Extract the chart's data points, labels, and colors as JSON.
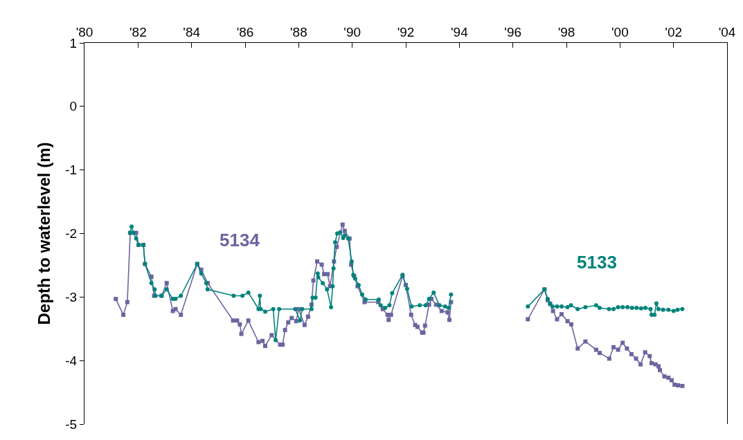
{
  "chart_data": {
    "type": "line",
    "ylabel": "Depth to waterlevel (m)",
    "xlim": [
      1980,
      2004
    ],
    "xticks": [
      {
        "value": 1980,
        "label": "'80"
      },
      {
        "value": 1982,
        "label": "'82"
      },
      {
        "value": 1984,
        "label": "'84"
      },
      {
        "value": 1986,
        "label": "'86"
      },
      {
        "value": 1988,
        "label": "'88"
      },
      {
        "value": 1990,
        "label": "'90"
      },
      {
        "value": 1992,
        "label": "'92"
      },
      {
        "value": 1994,
        "label": "'94"
      },
      {
        "value": 1996,
        "label": "'96"
      },
      {
        "value": 1998,
        "label": "'98"
      },
      {
        "value": 2000,
        "label": "'00"
      },
      {
        "value": 2002,
        "label": "'02"
      },
      {
        "value": 2004,
        "label": "'04"
      }
    ],
    "ylim": [
      -5,
      1
    ],
    "yticks": [
      -5,
      -4,
      -3,
      -2,
      -1,
      0,
      1
    ],
    "grid": false,
    "legend": false,
    "line_style": "solid",
    "series": [
      {
        "name": "5134",
        "color": "#6b65a0",
        "marker": "square",
        "x": [
          1981.17,
          1981.45,
          1981.6,
          1981.71,
          1981.93,
          1982.02,
          1982.2,
          1982.26,
          1982.5,
          1982.6,
          1982.88,
          1983.07,
          1983.3,
          1983.4,
          1983.6,
          1984.21,
          1984.36,
          1984.6,
          1985.55,
          1985.7,
          1985.8,
          1985.86,
          1986.12,
          1986.5,
          1986.65,
          1986.75,
          1986.99,
          1987.31,
          1987.4,
          1987.49,
          1987.61,
          1987.74,
          1987.91,
          1988.0,
          1988.22,
          1988.35,
          1988.48,
          1988.55,
          1988.69,
          1988.86,
          1988.95,
          1989.08,
          1989.17,
          1989.32,
          1989.42,
          1989.64,
          1989.72,
          1989.9,
          1989.96,
          1990.07,
          1990.2,
          1990.46,
          1990.97,
          1991.14,
          1991.32,
          1991.36,
          1991.45,
          1991.88,
          1992.0,
          1992.2,
          1992.35,
          1992.44,
          1992.61,
          1992.66,
          1992.72,
          1992.87,
          1992.96,
          1993.13,
          1993.34,
          1993.56,
          1993.63,
          1993.69,
          1995,
          1996.56,
          1997.18,
          1997.3,
          1997.39,
          1997.5,
          1997.65,
          1997.82,
          1998.04,
          1998.18,
          1998.42,
          1998.71,
          1999.11,
          1999.24,
          1999.6,
          1999.76,
          1999.93,
          2000.1,
          2000.26,
          2000.43,
          2000.6,
          2000.77,
          2000.94,
          2001.11,
          2001.18,
          2001.33,
          2001.44,
          2001.49,
          2001.66,
          2001.81,
          2001.93,
          2002.04,
          2002.17,
          2002.33
        ],
        "values": [
          -3.03,
          -3.28,
          -3.08,
          -1.99,
          -1.99,
          -2.18,
          -2.18,
          -2.48,
          -2.68,
          -2.98,
          -2.98,
          -2.78,
          -3.22,
          -3.19,
          -3.28,
          -2.48,
          -2.57,
          -2.78,
          -3.37,
          -3.37,
          -3.43,
          -3.58,
          -3.37,
          -3.71,
          -3.69,
          -3.77,
          -3.6,
          -3.75,
          -3.75,
          -3.52,
          -3.4,
          -3.33,
          -3.38,
          -3.19,
          -3.44,
          -3.31,
          -3.12,
          -2.74,
          -2.44,
          -2.49,
          -2.64,
          -2.64,
          -2.83,
          -2.44,
          -2.21,
          -1.86,
          -1.96,
          -2.08,
          -2.49,
          -2.67,
          -2.83,
          -3.08,
          -3.08,
          -3.19,
          -3.28,
          -3.36,
          -3.28,
          -2.67,
          -2.81,
          -3.28,
          -3.44,
          -3.47,
          -3.56,
          -3.56,
          -3.45,
          -3.12,
          -3.03,
          -3.12,
          -3.22,
          -3.24,
          -3.36,
          -3.08,
          null,
          -3.35,
          -2.88,
          -3.05,
          -3.11,
          -3.22,
          -3.35,
          -3.27,
          -3.38,
          -3.43,
          -3.81,
          -3.7,
          -3.83,
          -3.88,
          -3.97,
          -3.79,
          -3.83,
          -3.72,
          -3.81,
          -3.9,
          -3.97,
          -4.06,
          -3.87,
          -3.93,
          -4.04,
          -4.06,
          -4.09,
          -4.15,
          -4.25,
          -4.27,
          -4.31,
          -4.38,
          -4.39,
          -4.4
        ]
      },
      {
        "name": "5133",
        "color": "#00837a",
        "marker": "circle",
        "x": [
          1981.7,
          1981.76,
          1981.83,
          1981.93,
          1982.02,
          1982.2,
          1982.26,
          1982.5,
          1982.62,
          1982.65,
          1982.88,
          1983.07,
          1983.3,
          1983.4,
          1983.6,
          1984.21,
          1984.36,
          1984.55,
          1984.6,
          1985.57,
          1985.9,
          1986.12,
          1986.5,
          1986.55,
          1986.58,
          1986.75,
          1987.05,
          1987.14,
          1987.27,
          1987.87,
          1988.05,
          1988.13,
          1988.48,
          1988.52,
          1988.63,
          1988.71,
          1988.73,
          1988.9,
          1989.06,
          1989.21,
          1989.27,
          1989.3,
          1989.36,
          1989.44,
          1989.55,
          1989.66,
          1989.72,
          1989.85,
          1989.98,
          1990.04,
          1990.11,
          1990.24,
          1990.37,
          1990.5,
          1990.99,
          1991.06,
          1991.23,
          1991.39,
          1991.49,
          1991.88,
          1992.05,
          1992.22,
          1992.52,
          1992.74,
          1992.87,
          1993.04,
          1993.26,
          1993.47,
          1993.6,
          1993.69,
          1995,
          1996.56,
          1997.18,
          1997.3,
          1997.39,
          1997.48,
          1997.65,
          1997.82,
          1998.04,
          1998.17,
          1998.42,
          1998.71,
          1999.11,
          1999.24,
          1999.59,
          1999.76,
          1999.93,
          2000.1,
          2000.28,
          2000.45,
          2000.62,
          2000.79,
          2000.95,
          2001.14,
          2001.18,
          2001.29,
          2001.36,
          2001.44,
          2001.61,
          2001.81,
          2002.0,
          2002.15,
          2002.33
        ],
        "values": [
          -1.99,
          -1.89,
          -1.99,
          -2.08,
          -2.18,
          -2.18,
          -2.48,
          -2.78,
          -2.88,
          -2.98,
          -2.98,
          -2.88,
          -3.03,
          -3.03,
          -2.98,
          -2.48,
          -2.63,
          -2.78,
          -2.88,
          -2.98,
          -2.98,
          -2.93,
          -3.19,
          -2.98,
          -3.19,
          -3.23,
          -3.19,
          -3.68,
          -3.19,
          -3.19,
          -3.37,
          -3.19,
          -3.19,
          -3.01,
          -3.01,
          -2.63,
          -2.69,
          -2.78,
          -2.88,
          -3.16,
          -2.83,
          -2.55,
          -2.14,
          -2.0,
          -1.98,
          -2.07,
          -2.03,
          -2.08,
          -2.44,
          -2.65,
          -2.71,
          -2.81,
          -2.96,
          -3.04,
          -3.04,
          -3.13,
          -3.17,
          -3.13,
          -2.94,
          -2.65,
          -2.87,
          -3.15,
          -3.13,
          -3.13,
          -3.03,
          -2.93,
          -3.13,
          -3.15,
          -3.17,
          -2.96,
          null,
          -3.15,
          -2.88,
          -3.03,
          -3.1,
          -3.15,
          -3.15,
          -3.15,
          -3.16,
          -3.13,
          -3.19,
          -3.16,
          -3.13,
          -3.17,
          -3.19,
          -3.19,
          -3.16,
          -3.16,
          -3.16,
          -3.17,
          -3.17,
          -3.18,
          -3.17,
          -3.19,
          -3.28,
          -3.28,
          -3.1,
          -3.19,
          -3.2,
          -3.2,
          -3.22,
          -3.2,
          -3.19
        ]
      }
    ]
  }
}
